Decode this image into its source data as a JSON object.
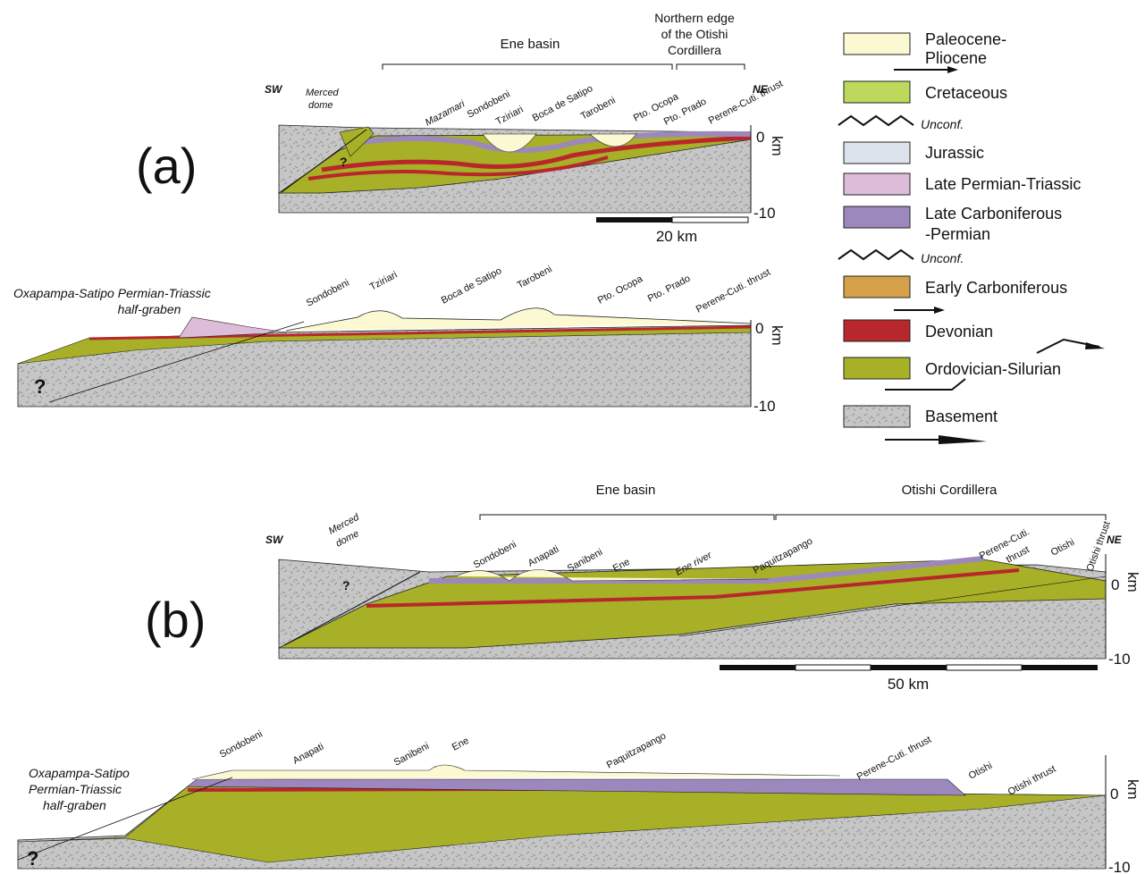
{
  "labels": {
    "panel_a": "(a)",
    "panel_b": "(b)",
    "sw": "SW",
    "ne": "NE",
    "km": "km",
    "zero": "0",
    "minus10": "-10",
    "question": "?"
  },
  "panel_a": {
    "ene_basin": "Ene basin",
    "otishi_edge_line1": "Northern edge",
    "otishi_edge_line2": "of the Otishi",
    "otishi_edge_line3": "Cordillera",
    "merced_line1": "Merced",
    "merced_line2": "dome",
    "scale": "20 km",
    "top_places": [
      "Mazamari",
      "Sondobeni",
      "Tziriari",
      "Boca de Satipo",
      "Tarobeni",
      "Pto. Ocopa",
      "Pto. Prado",
      "Perene-Cuti. thrust"
    ],
    "halfgraben_line1": "Oxapampa-Satipo Permian-Triassic",
    "halfgraben_line2": "half-graben",
    "bottom_places": [
      "Sondobeni",
      "Tziriari",
      "Boca de Satipo",
      "Tarobeni",
      "Pto. Ocopa",
      "Pto. Prado",
      "Perene-Cuti. thrust"
    ]
  },
  "panel_b": {
    "ene_basin": "Ene basin",
    "otishi": "Otishi Cordillera",
    "merced_line1": "Merced",
    "merced_line2": "dome",
    "scale": "50 km",
    "top_places": [
      "Sondobeni",
      "Anapati",
      "Sanibeni",
      "Ene",
      "Ene river",
      "Paquitzapango",
      "Perene-Cuti.",
      "thrust",
      "Otishi",
      "Otishi thrust"
    ],
    "halfgraben_line1": "Oxapampa-Satipo",
    "halfgraben_line2": "Permian-Triassic",
    "halfgraben_line3": "half-graben",
    "bottom_places": [
      "Sondobeni",
      "Anapati",
      "Sanibeni",
      "Ene",
      "Paquitzapango",
      "Perene-Cuti. thrust",
      "Otishi",
      "Otishi thrust"
    ]
  },
  "legend": {
    "items": [
      {
        "label": "Paleocene-",
        "label2": "Pliocene",
        "color": "#fbf8d2"
      },
      {
        "label": "Cretaceous",
        "color": "#bcd95c"
      },
      {
        "label": "Unconf.",
        "kind": "unconformity"
      },
      {
        "label": "Jurassic",
        "color": "#dde3ec"
      },
      {
        "label": "Late Permian-Triassic",
        "color": "#dcbcd9"
      },
      {
        "label": "Late Carboniferous",
        "label2": "-Permian",
        "color": "#9d88bd"
      },
      {
        "label": "Unconf.",
        "kind": "unconformity"
      },
      {
        "label": "Early Carboniferous",
        "color": "#d6a14a"
      },
      {
        "label": "Devonian",
        "color": "#b8272c"
      },
      {
        "label": "Ordovician-Silurian",
        "color": "#a7b027"
      },
      {
        "label": "Basement",
        "color": "#c6c6c6"
      }
    ]
  }
}
